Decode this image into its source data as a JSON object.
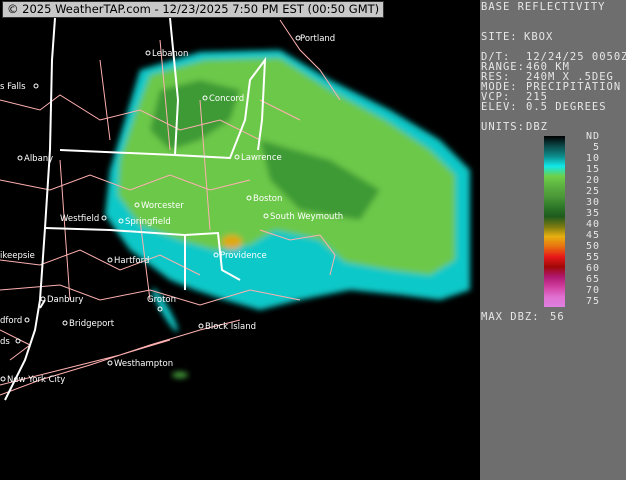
{
  "banner": "© 2025 WeatherTAP.com - 12/23/2025  7:50 PM EST (00:50 GMT)",
  "panel": {
    "title": "BASE REFLECTIVITY",
    "site_label": "SITE:",
    "site": "KBOX",
    "dt_label": "D/T:",
    "dt": "12/24/25 0050Z",
    "range_label": "RANGE:",
    "range": "460 KM",
    "res_label": "RES:",
    "res": "240M X .5DEG",
    "mode_label": "MODE:",
    "mode": "PRECIPITATION",
    "vcp_label": "VCP:",
    "vcp": "215",
    "elev_label": "ELEV:",
    "elev": "0.5 DEGREES",
    "units_label": "UNITS:",
    "units": "DBZ",
    "legend_ticks": [
      "ND",
      "5",
      "10",
      "15",
      "20",
      "25",
      "30",
      "35",
      "40",
      "45",
      "50",
      "55",
      "60",
      "65",
      "70",
      "75"
    ],
    "legend_colors": [
      "#000000",
      "#0c4a4a",
      "#0d8a8a",
      "#10e8e8",
      "#6fd04a",
      "#5cb040",
      "#4a9838",
      "#2e7a2a",
      "#1e5a1e",
      "#7a7a10",
      "#e8b010",
      "#e87010",
      "#e81818",
      "#a00808",
      "#b01870",
      "#d040a0",
      "#e070d0",
      "#e080e0"
    ],
    "max_label": "MAX DBZ:",
    "max": "56"
  },
  "map": {
    "colors": {
      "state": "#ffffff",
      "county": "#ffb0b0",
      "light": "#10e0e0",
      "mid": "#70d050",
      "heavy": "#e8b010"
    },
    "cities": [
      {
        "name": "Lebanon"
      },
      {
        "name": "Portland"
      },
      {
        "name": "s Falls"
      },
      {
        "name": "Concord"
      },
      {
        "name": "Albany"
      },
      {
        "name": "Lawrence"
      },
      {
        "name": "Worcester"
      },
      {
        "name": "Boston"
      },
      {
        "name": "Westfield"
      },
      {
        "name": "Springfield"
      },
      {
        "name": "South Weymouth"
      },
      {
        "name": "ikeepsie"
      },
      {
        "name": "Hartford"
      },
      {
        "name": "Providence"
      },
      {
        "name": "Danbury"
      },
      {
        "name": "Groton"
      },
      {
        "name": "Bridgeport"
      },
      {
        "name": "Block Island"
      },
      {
        "name": "dford"
      },
      {
        "name": "ds"
      },
      {
        "name": "Westhampton"
      },
      {
        "name": "New York City"
      }
    ]
  }
}
